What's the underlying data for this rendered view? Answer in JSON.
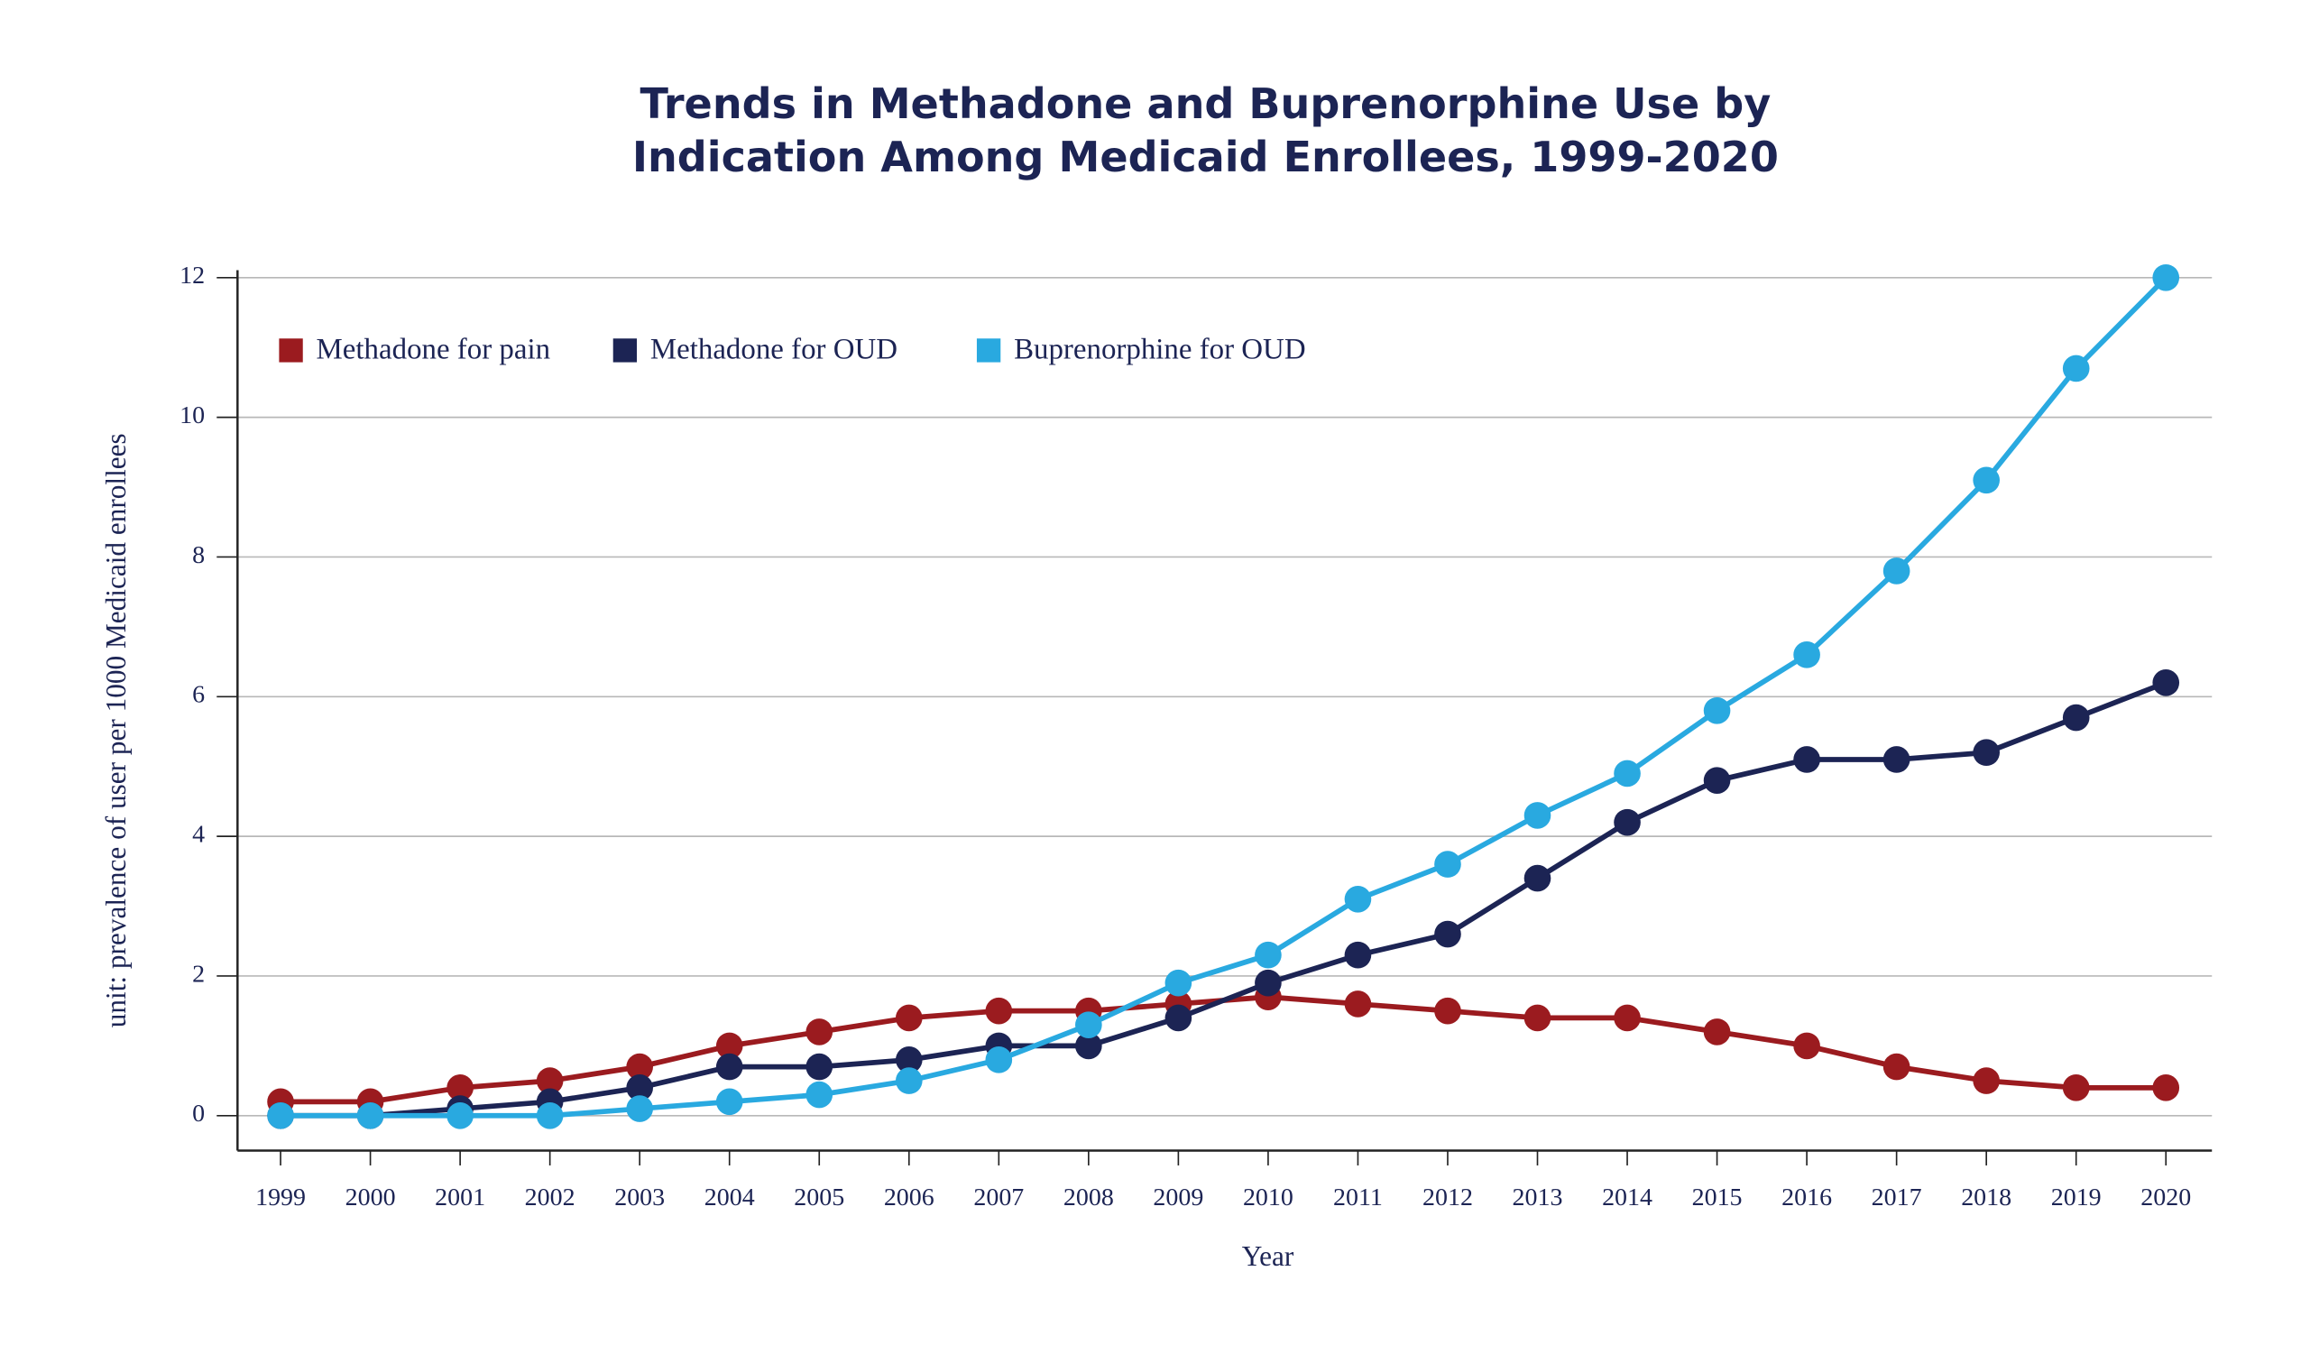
{
  "chart_data": {
    "type": "line",
    "title": [
      "Trends in Methadone and Buprenorphine Use by",
      "Indication Among Medicaid Enrollees, 1999-2020"
    ],
    "y_label": "unit: prevalence of user per 1000 Medicaid enrollees",
    "x_label": "Year",
    "categories": [
      "1999",
      "2000",
      "2001",
      "2002",
      "2003",
      "2004",
      "2005",
      "2006",
      "2007",
      "2008",
      "2009",
      "2010",
      "2011",
      "2012",
      "2013",
      "2014",
      "2015",
      "2016",
      "2017",
      "2018",
      "2019",
      "2020"
    ],
    "series": [
      {
        "name": "Methadone for pain",
        "color": "#9b1b1f",
        "values": [
          0.2,
          0.2,
          0.4,
          0.5,
          0.7,
          1.0,
          1.2,
          1.4,
          1.5,
          1.5,
          1.6,
          1.7,
          1.6,
          1.5,
          1.4,
          1.4,
          1.2,
          1.0,
          0.7,
          0.5,
          0.4,
          0.4
        ]
      },
      {
        "name": "Methadone for OUD",
        "color": "#1c2454",
        "values": [
          0,
          0,
          0.1,
          0.2,
          0.4,
          0.7,
          0.7,
          0.8,
          1.0,
          1.0,
          1.4,
          1.9,
          2.3,
          2.6,
          3.4,
          4.2,
          4.8,
          5.1,
          5.1,
          5.2,
          5.7,
          6.2
        ]
      },
      {
        "name": "Buprenorphine for OUD",
        "color": "#29a9e0",
        "values": [
          0,
          0,
          0,
          0,
          0.1,
          0.2,
          0.3,
          0.5,
          0.8,
          1.3,
          1.9,
          2.3,
          3.1,
          3.6,
          4.3,
          4.9,
          5.8,
          6.6,
          7.8,
          9.1,
          10.7,
          12.0
        ]
      }
    ],
    "ylim": [
      -0.5,
      12
    ],
    "yticks": [
      0,
      2,
      4,
      6,
      8,
      10,
      12
    ],
    "grid": true,
    "legend": "top-left"
  }
}
